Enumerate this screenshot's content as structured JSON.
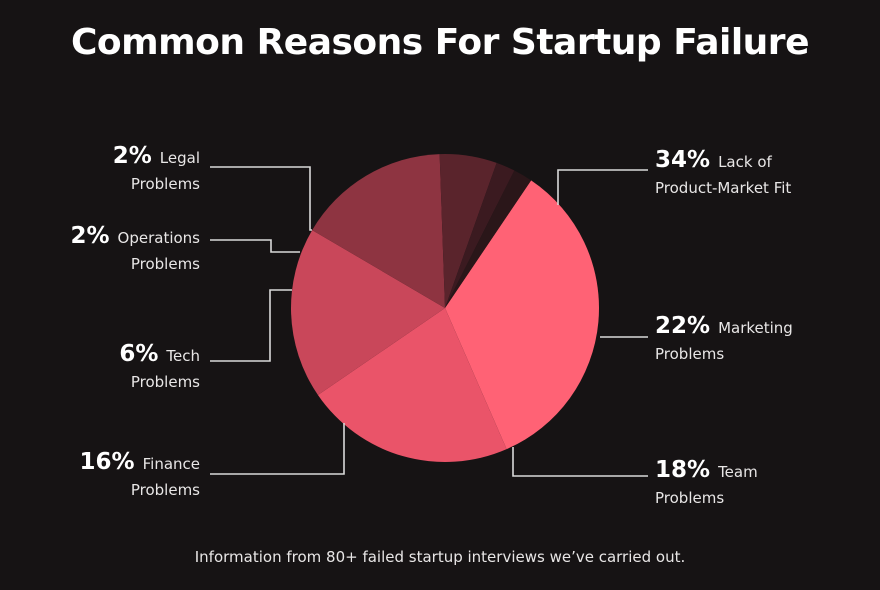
{
  "chart_data": {
    "type": "pie",
    "title": "Common Reasons For Startup Failure",
    "slices": [
      {
        "label_line1": "Lack of",
        "label_line2": "Product-Market Fit",
        "pct_label": "34%",
        "value": 34,
        "color": "#ff6275"
      },
      {
        "label_line1": "Marketing",
        "label_line2": "Problems",
        "pct_label": "22%",
        "value": 22,
        "color": "#ea5469"
      },
      {
        "label_line1": "Team",
        "label_line2": "Problems",
        "pct_label": "18%",
        "value": 18,
        "color": "#c9475a"
      },
      {
        "label_line1": "Finance",
        "label_line2": "Problems",
        "pct_label": "16%",
        "value": 16,
        "color": "#8e3441"
      },
      {
        "label_line1": "Tech",
        "label_line2": "Problems",
        "pct_label": "6%",
        "value": 6,
        "color": "#5a242c"
      },
      {
        "label_line1": "Operations",
        "label_line2": "Problems",
        "pct_label": "2%",
        "value": 2,
        "color": "#3b1a20"
      },
      {
        "label_line1": "Legal",
        "label_line2": "Problems",
        "pct_label": "2%",
        "value": 2,
        "color": "#2a1619"
      }
    ],
    "footnote": "Information from 80+ failed startup interviews we’ve carried out."
  }
}
